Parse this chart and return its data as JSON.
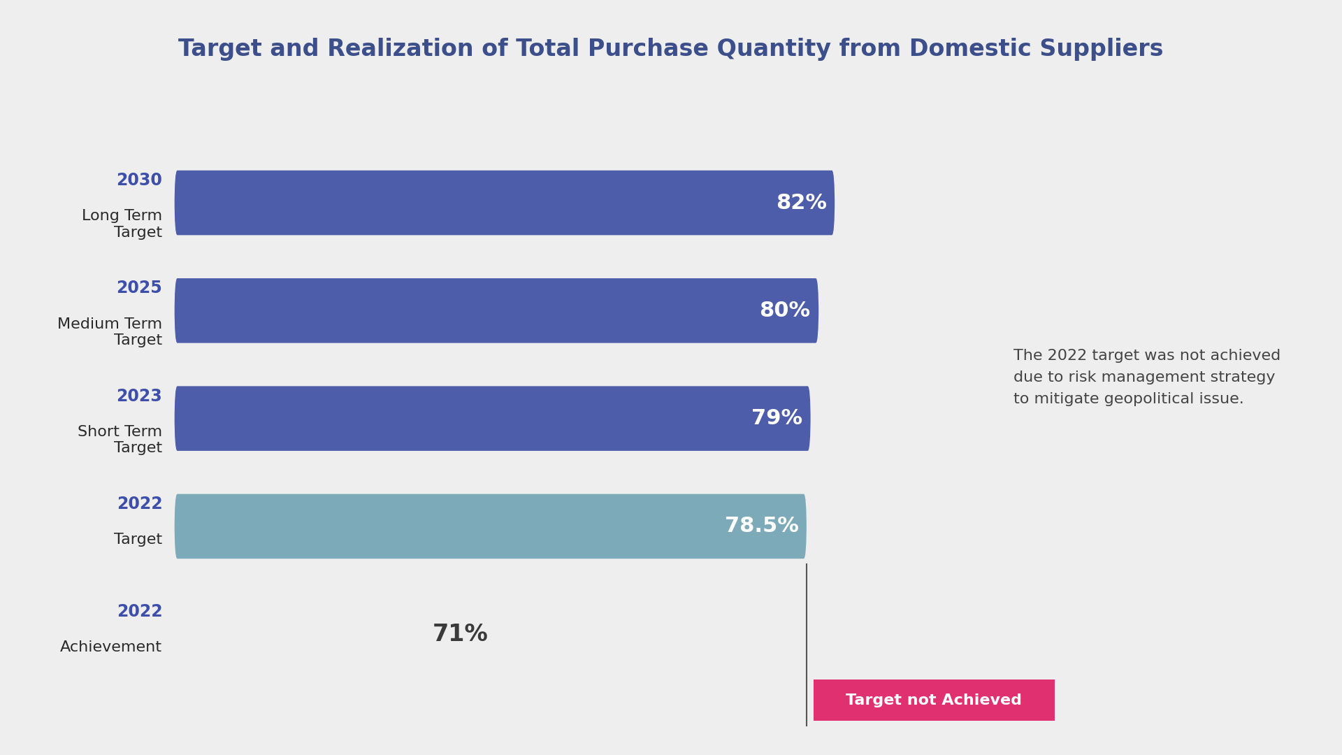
{
  "title": "Target and Realization of Total Purchase Quantity from Domestic Suppliers",
  "title_color": "#3d4f8a",
  "background_color": "#eeeeee",
  "bars": [
    {
      "label_year": "2030",
      "label_desc": "Long Term\nTarget",
      "value": 82,
      "color": "#4d5daa",
      "label_text": "82%",
      "label_color": "#ffffff",
      "has_bar": true
    },
    {
      "label_year": "2025",
      "label_desc": "Medium Term\nTarget",
      "value": 80,
      "color": "#4d5daa",
      "label_text": "80%",
      "label_color": "#ffffff",
      "has_bar": true
    },
    {
      "label_year": "2023",
      "label_desc": "Short Term\nTarget",
      "value": 79,
      "color": "#4d5daa",
      "label_text": "79%",
      "label_color": "#ffffff",
      "has_bar": true
    },
    {
      "label_year": "2022",
      "label_desc": "Target",
      "value": 78.5,
      "color": "#7daab8",
      "label_text": "78.5%",
      "label_color": "#ffffff",
      "has_bar": true
    },
    {
      "label_year": "2022",
      "label_desc": "Achievement",
      "value": 71,
      "color": null,
      "label_text": "71%",
      "label_color": "#3a3a3a",
      "has_bar": false
    }
  ],
  "annotation_text": "The 2022 target was not achieved\ndue to risk management strategy\nto mitigate geopolitical issue.",
  "annotation_color": "#444444",
  "badge_text": "Target not Achieved",
  "badge_bg": "#e03070",
  "badge_text_color": "#ffffff",
  "vline_x": 78.5,
  "year_color": "#3d4faa",
  "desc_color": "#2a2a2a"
}
